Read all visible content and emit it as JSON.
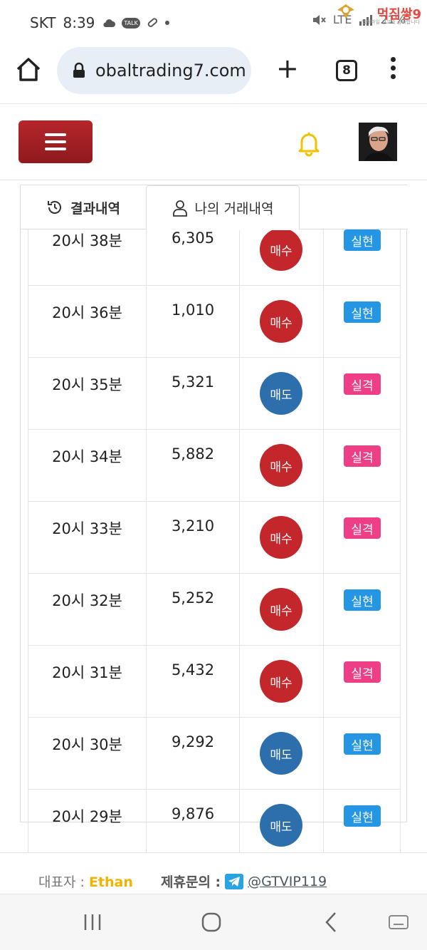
{
  "status_bar": {
    "carrier": "SKT",
    "time": "8:39",
    "talk_badge": "TALK",
    "network": "LTE",
    "battery": "21%",
    "watermark_title": "먹짐쌓9",
    "watermark_sub": "업체파일 신고와 감사합니다"
  },
  "browser": {
    "url": "obaltrading7.com",
    "tab_count": "8"
  },
  "tabs": [
    {
      "label": "결과내역"
    },
    {
      "label": "나의 거래내역"
    }
  ],
  "trades": [
    {
      "time": "20시 38분",
      "price": "6,305",
      "type": "매수",
      "type_color": "#c3272b",
      "result": "실현",
      "result_color": "#2596e3"
    },
    {
      "time": "20시 36분",
      "price": "1,010",
      "type": "매수",
      "type_color": "#c3272b",
      "result": "실현",
      "result_color": "#2596e3"
    },
    {
      "time": "20시 35분",
      "price": "5,321",
      "type": "매도",
      "type_color": "#2d6ead",
      "result": "실격",
      "result_color": "#ee3e86"
    },
    {
      "time": "20시 34분",
      "price": "5,882",
      "type": "매수",
      "type_color": "#c3272b",
      "result": "실격",
      "result_color": "#ee3e86"
    },
    {
      "time": "20시 33분",
      "price": "3,210",
      "type": "매수",
      "type_color": "#c3272b",
      "result": "실격",
      "result_color": "#ee3e86"
    },
    {
      "time": "20시 32분",
      "price": "5,252",
      "type": "매수",
      "type_color": "#c3272b",
      "result": "실현",
      "result_color": "#2596e3"
    },
    {
      "time": "20시 31분",
      "price": "5,432",
      "type": "매수",
      "type_color": "#c3272b",
      "result": "실격",
      "result_color": "#ee3e86"
    },
    {
      "time": "20시 30분",
      "price": "9,292",
      "type": "매도",
      "type_color": "#2d6ead",
      "result": "실현",
      "result_color": "#2596e3"
    },
    {
      "time": "20시 29분",
      "price": "9,876",
      "type": "매도",
      "type_color": "#2d6ead",
      "result": "실현",
      "result_color": "#2596e3"
    }
  ],
  "footer": {
    "rep_label": "대표자 :",
    "rep_name": "Ethan",
    "contact_label": "제휴문의 :",
    "contact_handle": "@GTVIP119"
  },
  "colors": {
    "brand_red": "#a91f24",
    "bell_yellow": "#f2c200",
    "name_yellow": "#f0b400"
  }
}
